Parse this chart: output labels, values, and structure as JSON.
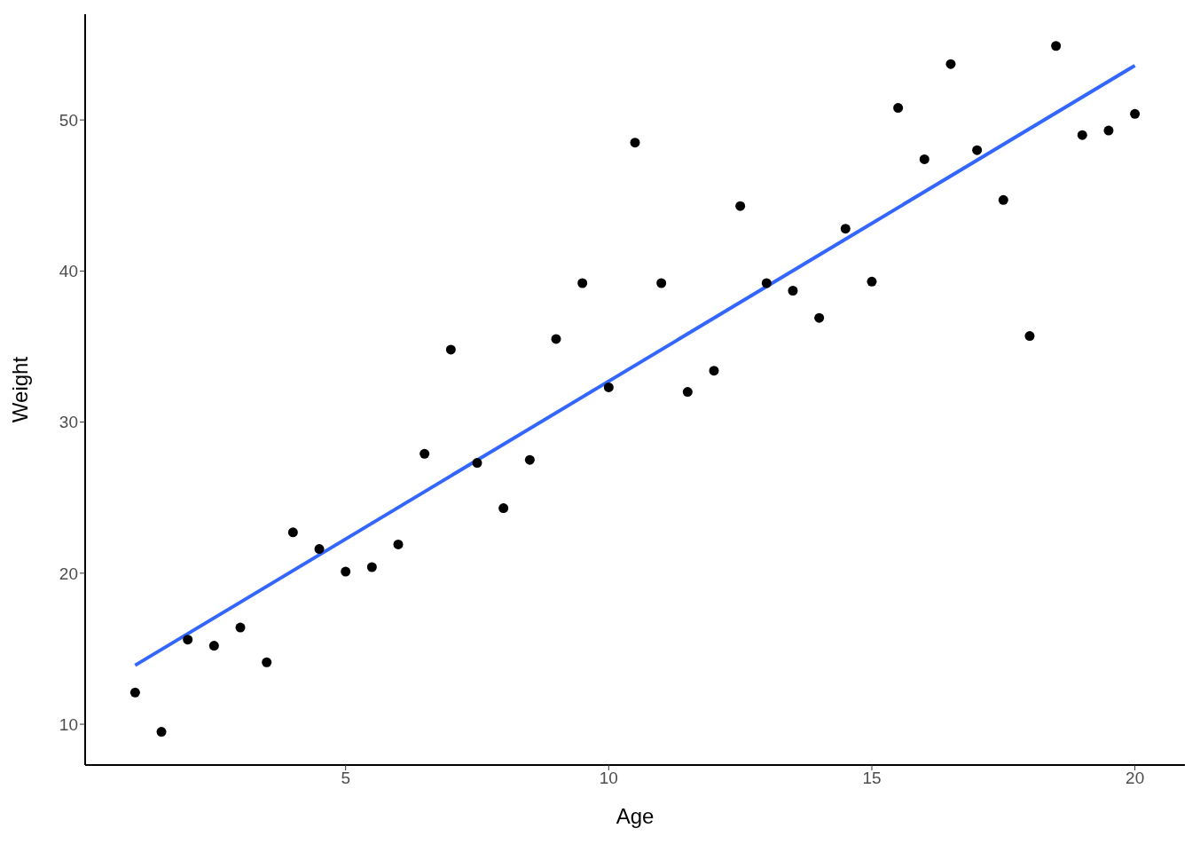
{
  "chart_data": {
    "type": "scatter",
    "xlabel": "Age",
    "ylabel": "Weight",
    "xlim": [
      0.05,
      20.95
    ],
    "xticks": [
      5,
      10,
      15,
      20
    ],
    "ylim": [
      7.3,
      57
    ],
    "yticks": [
      10,
      20,
      30,
      40,
      50
    ],
    "grid": false,
    "legend": false,
    "series": [
      {
        "marker": "circle",
        "color": "#000000",
        "x": [
          1,
          1.5,
          2,
          2.5,
          3,
          3.5,
          4,
          4.5,
          5,
          5.5,
          6,
          6.5,
          7,
          7.5,
          8,
          8.5,
          9,
          9.5,
          10,
          10.5,
          11,
          11.5,
          12,
          12.5,
          13,
          13.5,
          14,
          14.5,
          15,
          15.5,
          16,
          16.5,
          17,
          17.5,
          18,
          18.5,
          19,
          19.5,
          20
        ],
        "values": [
          12.1,
          9.5,
          15.6,
          15.2,
          16.4,
          14.1,
          22.7,
          21.6,
          20.1,
          20.4,
          21.9,
          27.9,
          34.8,
          27.3,
          24.3,
          27.5,
          35.5,
          39.2,
          32.3,
          48.5,
          39.2,
          32.0,
          33.4,
          44.3,
          39.2,
          38.7,
          36.9,
          42.8,
          39.3,
          50.8,
          47.4,
          53.7,
          48.0,
          44.7,
          35.7,
          54.9,
          49.0,
          49.3,
          50.4
        ]
      },
      {
        "type": "line",
        "color": "#3366ff",
        "x": [
          1,
          20
        ],
        "values": [
          13.9,
          53.6
        ]
      }
    ]
  }
}
